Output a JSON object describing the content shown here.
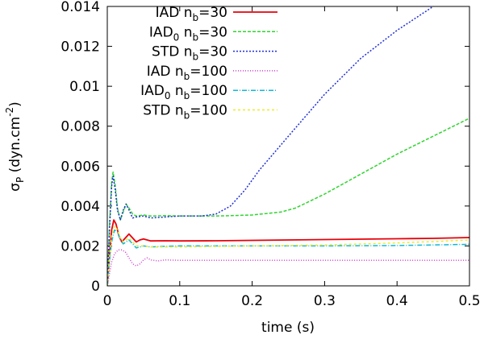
{
  "chart_data": {
    "type": "line",
    "title": "",
    "xlabel": "time (s)",
    "ylabel": {
      "main": "σ",
      "sub": "P",
      "units": " (dyn.cm",
      "exp": "-2",
      "close": ")"
    },
    "xlim": [
      0,
      0.5
    ],
    "ylim": [
      0,
      0.014
    ],
    "xticks": [
      "0",
      "0.1",
      "0.2",
      "0.3",
      "0.4",
      "0.5"
    ],
    "xtick_values": [
      0,
      0.1,
      0.2,
      0.3,
      0.4,
      0.5
    ],
    "yticks": [
      "0",
      "0.002",
      "0.004",
      "0.006",
      "0.008",
      "0.01",
      "0.012",
      "0.014"
    ],
    "ytick_values": [
      0,
      0.002,
      0.004,
      0.006,
      0.008,
      0.01,
      0.012,
      0.014
    ],
    "legend_position": "top-left",
    "series": [
      {
        "name": "IAD n_b=30",
        "label": {
          "pre": "IAD n",
          "sub": "b",
          "post": "=30"
        },
        "color": "#e8000b",
        "dash": "none",
        "width": 1.8,
        "points": [
          [
            0,
            0
          ],
          [
            0.003,
            0.0015
          ],
          [
            0.006,
            0.0028
          ],
          [
            0.009,
            0.0033
          ],
          [
            0.012,
            0.0031
          ],
          [
            0.016,
            0.0025
          ],
          [
            0.02,
            0.0022
          ],
          [
            0.025,
            0.0024
          ],
          [
            0.03,
            0.0026
          ],
          [
            0.035,
            0.0024
          ],
          [
            0.04,
            0.0022
          ],
          [
            0.045,
            0.0023
          ],
          [
            0.05,
            0.00235
          ],
          [
            0.06,
            0.00225
          ],
          [
            0.08,
            0.00226
          ],
          [
            0.1,
            0.00225
          ],
          [
            0.15,
            0.00226
          ],
          [
            0.2,
            0.00228
          ],
          [
            0.25,
            0.0023
          ],
          [
            0.3,
            0.00232
          ],
          [
            0.35,
            0.00234
          ],
          [
            0.4,
            0.00236
          ],
          [
            0.45,
            0.00238
          ],
          [
            0.5,
            0.00242
          ]
        ]
      },
      {
        "name": "IAD0 n_b=30",
        "label": {
          "pre": "IAD",
          "pre_sub": "0",
          "mid": " n",
          "sub": "b",
          "post": "=30"
        },
        "color": "#2fd42f",
        "dash": "4,2",
        "width": 1.5,
        "points": [
          [
            0,
            0
          ],
          [
            0.003,
            0.003
          ],
          [
            0.006,
            0.0052
          ],
          [
            0.008,
            0.0057
          ],
          [
            0.011,
            0.005
          ],
          [
            0.014,
            0.0039
          ],
          [
            0.018,
            0.0033
          ],
          [
            0.022,
            0.0037
          ],
          [
            0.026,
            0.0041
          ],
          [
            0.03,
            0.0039
          ],
          [
            0.035,
            0.0036
          ],
          [
            0.04,
            0.0035
          ],
          [
            0.05,
            0.00355
          ],
          [
            0.06,
            0.0035
          ],
          [
            0.08,
            0.00352
          ],
          [
            0.1,
            0.0035
          ],
          [
            0.15,
            0.0035
          ],
          [
            0.2,
            0.00355
          ],
          [
            0.24,
            0.0037
          ],
          [
            0.26,
            0.0039
          ],
          [
            0.3,
            0.0046
          ],
          [
            0.35,
            0.0056
          ],
          [
            0.4,
            0.0066
          ],
          [
            0.45,
            0.0075
          ],
          [
            0.5,
            0.0084
          ]
        ]
      },
      {
        "name": "STD n_b=30",
        "label": {
          "pre": "STD n",
          "sub": "b",
          "post": "=30"
        },
        "color": "#1f2fd8",
        "dash": "2,2",
        "width": 1.5,
        "points": [
          [
            0,
            0
          ],
          [
            0.003,
            0.0028
          ],
          [
            0.006,
            0.005
          ],
          [
            0.008,
            0.0055
          ],
          [
            0.011,
            0.0048
          ],
          [
            0.014,
            0.0038
          ],
          [
            0.018,
            0.0033
          ],
          [
            0.022,
            0.0038
          ],
          [
            0.026,
            0.0041
          ],
          [
            0.03,
            0.0038
          ],
          [
            0.035,
            0.0034
          ],
          [
            0.04,
            0.00345
          ],
          [
            0.05,
            0.0035
          ],
          [
            0.06,
            0.0034
          ],
          [
            0.08,
            0.00345
          ],
          [
            0.1,
            0.0035
          ],
          [
            0.13,
            0.0035
          ],
          [
            0.15,
            0.0036
          ],
          [
            0.17,
            0.004
          ],
          [
            0.19,
            0.0048
          ],
          [
            0.21,
            0.0058
          ],
          [
            0.25,
            0.0075
          ],
          [
            0.3,
            0.0096
          ],
          [
            0.35,
            0.0114
          ],
          [
            0.4,
            0.0128
          ],
          [
            0.45,
            0.014
          ]
        ]
      },
      {
        "name": "IAD n_b=100",
        "label": {
          "pre": "IAD  n",
          "sub": "b",
          "post": "=100"
        },
        "color": "#d23cd2",
        "dash": "1,2",
        "width": 1.5,
        "points": [
          [
            0,
            0
          ],
          [
            0.003,
            0.0006
          ],
          [
            0.006,
            0.0012
          ],
          [
            0.01,
            0.0016
          ],
          [
            0.015,
            0.0018
          ],
          [
            0.02,
            0.0018
          ],
          [
            0.025,
            0.0017
          ],
          [
            0.03,
            0.0014
          ],
          [
            0.035,
            0.0011
          ],
          [
            0.04,
            0.001
          ],
          [
            0.045,
            0.0011
          ],
          [
            0.05,
            0.0013
          ],
          [
            0.055,
            0.0014
          ],
          [
            0.06,
            0.0013
          ],
          [
            0.07,
            0.00125
          ],
          [
            0.08,
            0.0013
          ],
          [
            0.1,
            0.00128
          ],
          [
            0.2,
            0.00128
          ],
          [
            0.3,
            0.00128
          ],
          [
            0.4,
            0.00128
          ],
          [
            0.5,
            0.00128
          ]
        ]
      },
      {
        "name": "IAD0 n_b=100",
        "label": {
          "pre": "IAD",
          "pre_sub": "0",
          "mid": " n",
          "sub": "b",
          "post": "=100"
        },
        "color": "#12b8d8",
        "dash": "6,2,1,2",
        "width": 1.5,
        "points": [
          [
            0,
            0
          ],
          [
            0.003,
            0.0012
          ],
          [
            0.006,
            0.0022
          ],
          [
            0.01,
            0.0028
          ],
          [
            0.014,
            0.0027
          ],
          [
            0.018,
            0.0023
          ],
          [
            0.022,
            0.0021
          ],
          [
            0.026,
            0.0022
          ],
          [
            0.03,
            0.0023
          ],
          [
            0.035,
            0.0021
          ],
          [
            0.04,
            0.0019
          ],
          [
            0.045,
            0.00195
          ],
          [
            0.05,
            0.002
          ],
          [
            0.06,
            0.00195
          ],
          [
            0.08,
            0.00198
          ],
          [
            0.1,
            0.002
          ],
          [
            0.2,
            0.002
          ],
          [
            0.3,
            0.002
          ],
          [
            0.4,
            0.00202
          ],
          [
            0.45,
            0.00205
          ],
          [
            0.5,
            0.00208
          ]
        ]
      },
      {
        "name": "STD n_b=100",
        "label": {
          "pre": "STD n",
          "sub": "b",
          "post": "=100"
        },
        "color": "#ecec28",
        "dash": "3,3",
        "width": 1.5,
        "points": [
          [
            0,
            0
          ],
          [
            0.003,
            0.0014
          ],
          [
            0.006,
            0.0025
          ],
          [
            0.01,
            0.003
          ],
          [
            0.014,
            0.0028
          ],
          [
            0.018,
            0.0024
          ],
          [
            0.022,
            0.0022
          ],
          [
            0.026,
            0.0023
          ],
          [
            0.03,
            0.0024
          ],
          [
            0.035,
            0.0022
          ],
          [
            0.04,
            0.002
          ],
          [
            0.05,
            0.002
          ],
          [
            0.06,
            0.00195
          ],
          [
            0.1,
            0.00195
          ],
          [
            0.2,
            0.002
          ],
          [
            0.3,
            0.00205
          ],
          [
            0.4,
            0.00215
          ],
          [
            0.45,
            0.00222
          ],
          [
            0.5,
            0.0023
          ]
        ]
      }
    ]
  }
}
